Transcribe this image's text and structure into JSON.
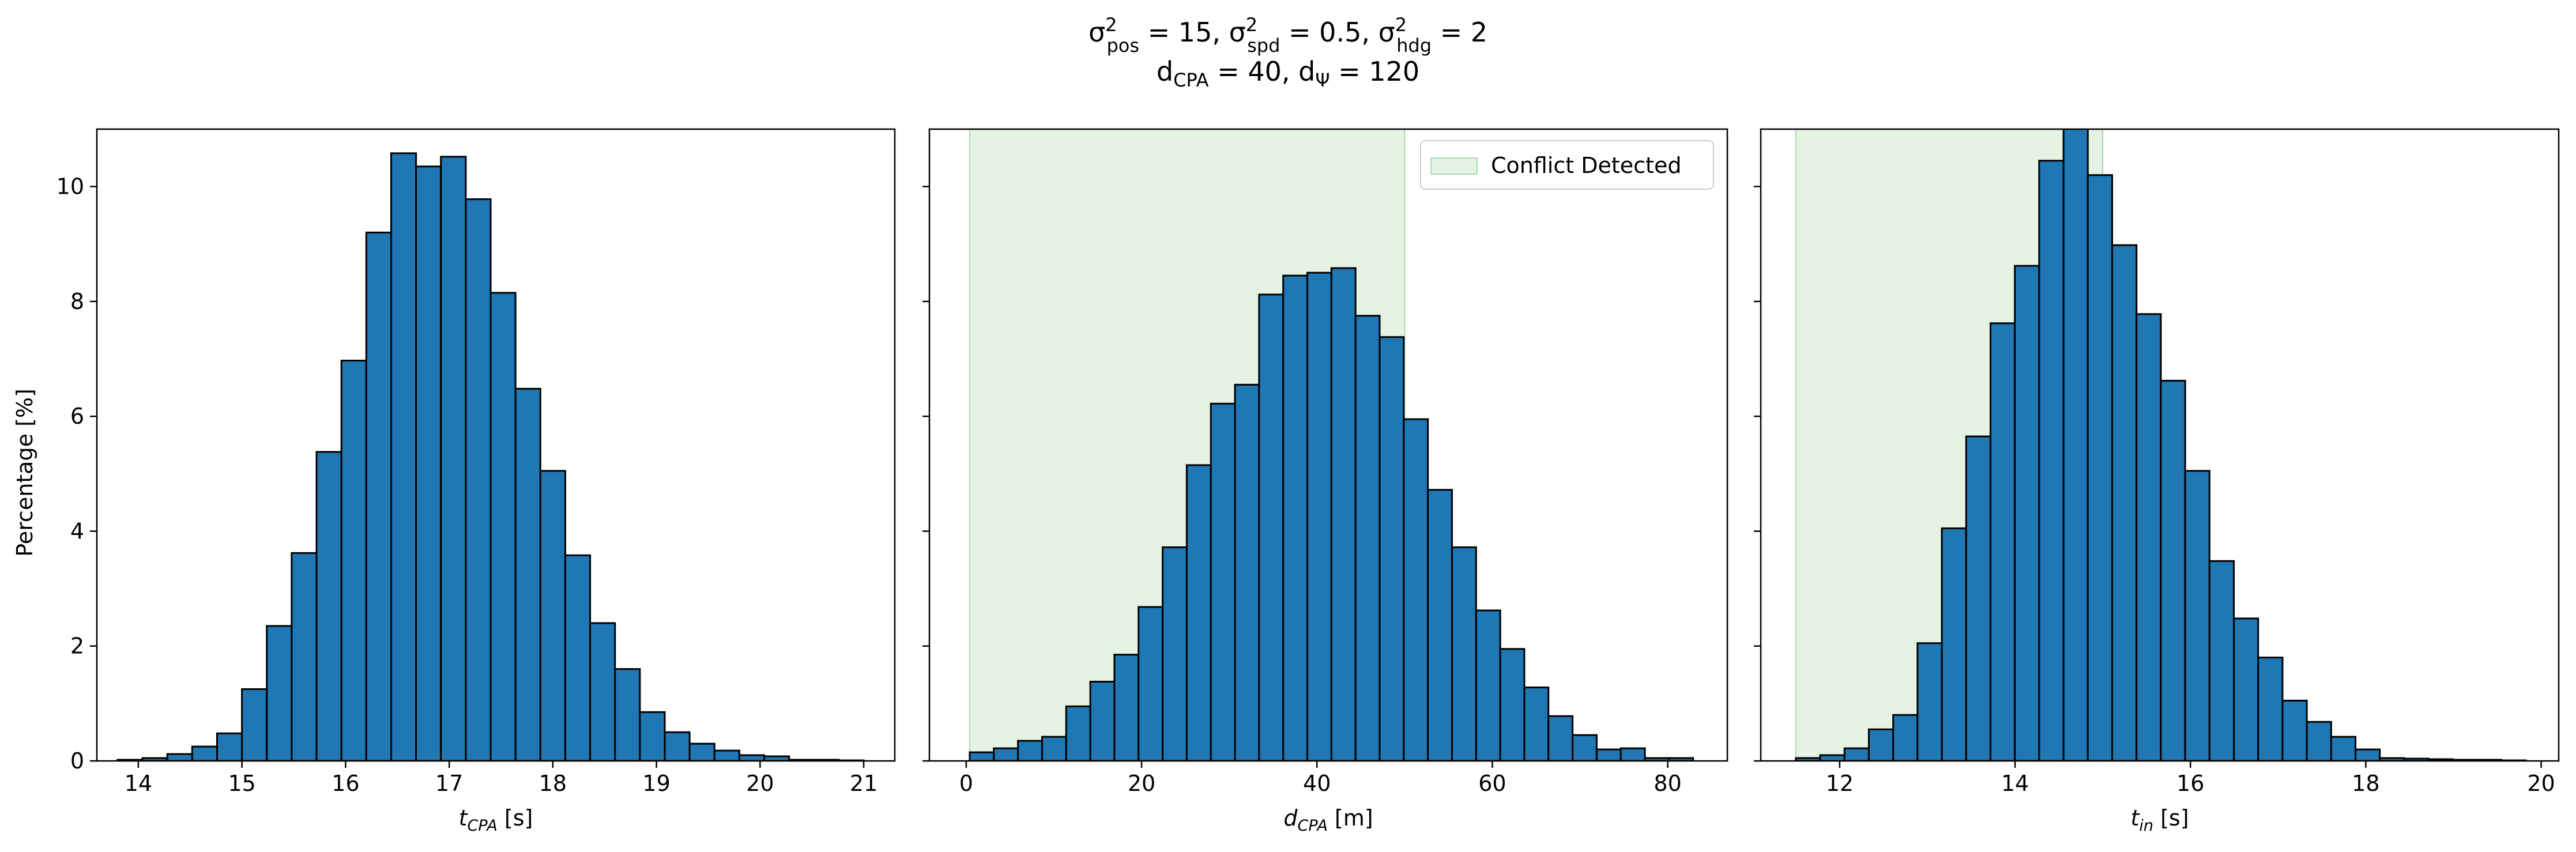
{
  "title": {
    "line1": "σ²pos = 15, σ²spd = 0.5, σ²hdg = 2",
    "line2": "dCPA = 40, dΨ = 120"
  },
  "shared_ylabel": "Percentage [%]",
  "colors": {
    "bar": "#1f77b4",
    "edge": "#000000",
    "conflict": "#2ca02c"
  },
  "chart_data": [
    {
      "type": "bar",
      "subtype": "histogram",
      "xlabel": "tCPA [s]",
      "ylabel": "Percentage [%]",
      "xlim": [
        13.6,
        21.3
      ],
      "ylim": [
        0,
        11
      ],
      "xticks": [
        14,
        15,
        16,
        17,
        18,
        19,
        20,
        21
      ],
      "yticks": [
        0,
        2,
        4,
        6,
        8,
        10
      ],
      "bin_edges": [
        13.8,
        14.04,
        14.28,
        14.52,
        14.76,
        15.0,
        15.24,
        15.48,
        15.72,
        15.96,
        16.2,
        16.44,
        16.68,
        16.92,
        17.16,
        17.4,
        17.64,
        17.88,
        18.12,
        18.36,
        18.6,
        18.84,
        19.08,
        19.32,
        19.56,
        19.8,
        20.04,
        20.28,
        20.52,
        20.76,
        21.0
      ],
      "values": [
        0.02,
        0.05,
        0.12,
        0.25,
        0.48,
        1.25,
        2.35,
        3.62,
        5.38,
        6.97,
        9.2,
        10.58,
        10.35,
        10.52,
        9.78,
        8.15,
        6.48,
        5.05,
        3.58,
        2.4,
        1.6,
        0.85,
        0.5,
        0.3,
        0.18,
        0.1,
        0.08,
        0.02,
        0.02,
        0.01
      ]
    },
    {
      "type": "bar",
      "subtype": "histogram",
      "xlabel": "dCPA [m]",
      "xlim": [
        -4.2,
        86.8
      ],
      "ylim": [
        0,
        11
      ],
      "xticks": [
        0,
        20,
        40,
        60,
        80
      ],
      "yticks": [
        0,
        2,
        4,
        6,
        8,
        10
      ],
      "shaded_region": {
        "label": "Conflict Detected",
        "x_range": [
          0.4,
          50
        ]
      },
      "legend": {
        "position": "top-right",
        "entries": [
          "Conflict Detected"
        ]
      },
      "bin_edges": [
        0.4,
        3.15,
        5.9,
        8.65,
        11.4,
        14.15,
        16.9,
        19.65,
        22.4,
        25.15,
        27.9,
        30.65,
        33.4,
        36.15,
        38.9,
        41.65,
        44.4,
        47.15,
        49.9,
        52.65,
        55.4,
        58.15,
        60.9,
        63.65,
        66.4,
        69.15,
        71.9,
        74.65,
        77.4,
        80.15,
        82.9
      ],
      "values": [
        0.15,
        0.22,
        0.35,
        0.42,
        0.95,
        1.38,
        1.85,
        2.68,
        3.72,
        5.15,
        6.22,
        6.55,
        8.12,
        8.45,
        8.5,
        8.58,
        7.75,
        7.38,
        5.95,
        4.72,
        3.72,
        2.62,
        1.95,
        1.28,
        0.78,
        0.45,
        0.2,
        0.22,
        0.05,
        0.05
      ]
    },
    {
      "type": "bar",
      "subtype": "histogram",
      "xlabel": "tin [s]",
      "xlim": [
        11.1,
        20.2
      ],
      "ylim": [
        0,
        11
      ],
      "xticks": [
        12,
        14,
        16,
        18,
        20
      ],
      "yticks": [
        0,
        2,
        4,
        6,
        8,
        10
      ],
      "shaded_region": {
        "label": "Conflict Detected",
        "x_range": [
          11.5,
          15.0
        ]
      },
      "bin_edges": [
        11.5,
        11.7775,
        12.055,
        12.3325,
        12.61,
        12.8875,
        13.165,
        13.4425,
        13.72,
        13.9975,
        14.275,
        14.5525,
        14.83,
        15.1075,
        15.385,
        15.6625,
        15.94,
        16.2175,
        16.495,
        16.7725,
        17.05,
        17.3275,
        17.605,
        17.8825,
        18.16,
        18.4375,
        18.715,
        18.9925,
        19.27,
        19.5475,
        19.825
      ],
      "values": [
        0.05,
        0.1,
        0.22,
        0.55,
        0.8,
        2.05,
        4.05,
        5.65,
        7.62,
        8.62,
        10.45,
        11.05,
        10.2,
        8.98,
        7.78,
        6.62,
        5.05,
        3.48,
        2.48,
        1.8,
        1.05,
        0.68,
        0.42,
        0.2,
        0.05,
        0.04,
        0.03,
        0.02,
        0.02,
        0.01
      ]
    }
  ]
}
